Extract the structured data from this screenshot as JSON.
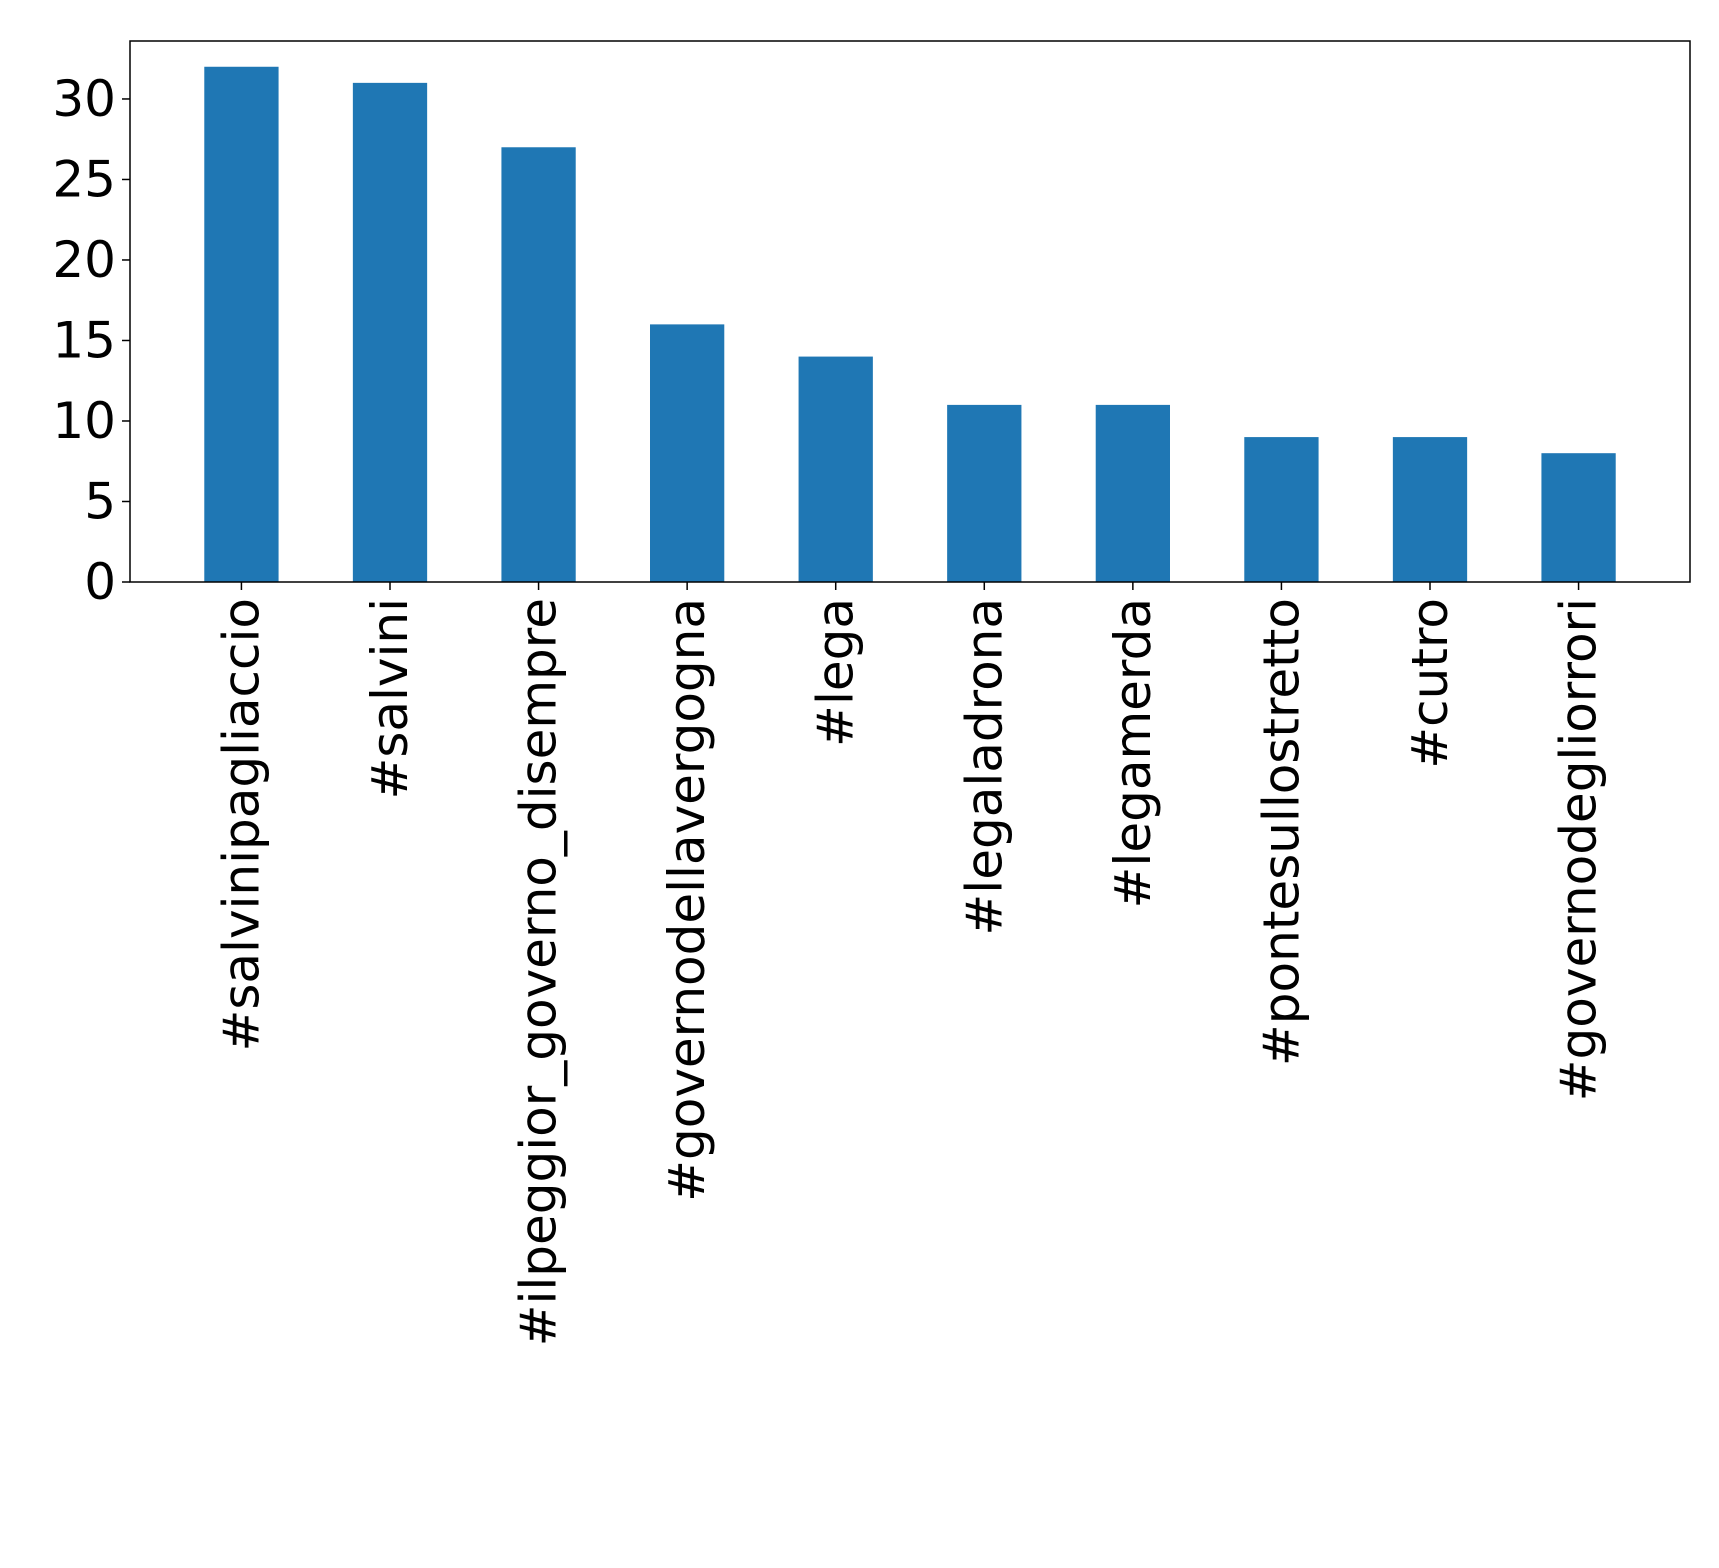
{
  "colors": {
    "bar": "#1f77b4",
    "axis": "#000000",
    "background": "#ffffff"
  },
  "chart_data": {
    "type": "bar",
    "title": "",
    "xlabel": "",
    "ylabel": "",
    "categories": [
      "#salvinipagliaccio",
      "#salvini",
      "#ilpeggior_governo_disempre",
      "#governodellavergogna",
      "#lega",
      "#legaladrona",
      "#legamerda",
      "#pontesullostretto",
      "#cutro",
      "#governodegliorrori"
    ],
    "values": [
      32,
      31,
      27,
      16,
      14,
      11,
      11,
      9,
      9,
      8
    ],
    "ylim": [
      0,
      33.6
    ],
    "yticks": [
      0,
      5,
      10,
      15,
      20,
      25,
      30
    ],
    "grid": false,
    "legend": "none"
  }
}
